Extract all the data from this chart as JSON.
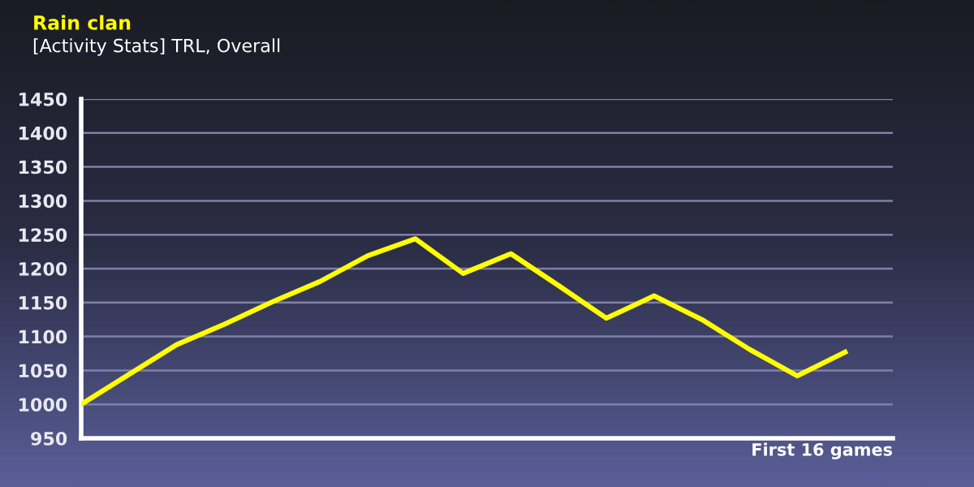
{
  "chart_data": {
    "type": "line",
    "title": "Rain clan",
    "subtitle": "[Activity Stats] TRL, Overall",
    "xlabel": "First 16 games",
    "categories": [
      null,
      null,
      null,
      null,
      null,
      null,
      null,
      null,
      null,
      null,
      null,
      null,
      null,
      null,
      null,
      null,
      null
    ],
    "series": [
      {
        "color": "#ffff00",
        "values": [
          1000,
          1044,
          1088,
          1118,
          1151,
          1181,
          1219,
          1244,
          1193,
          1222,
          1175,
          1127,
          1160,
          1125,
          1081,
          1042,
          1077
        ]
      }
    ],
    "ylim": [
      950,
      1450
    ],
    "yticks": [
      950,
      1000,
      1050,
      1100,
      1150,
      1200,
      1250,
      1300,
      1350,
      1400,
      1450
    ],
    "grid": "y",
    "tick_labels": "y",
    "legend": false,
    "marker": "none",
    "line_style": "solid"
  }
}
